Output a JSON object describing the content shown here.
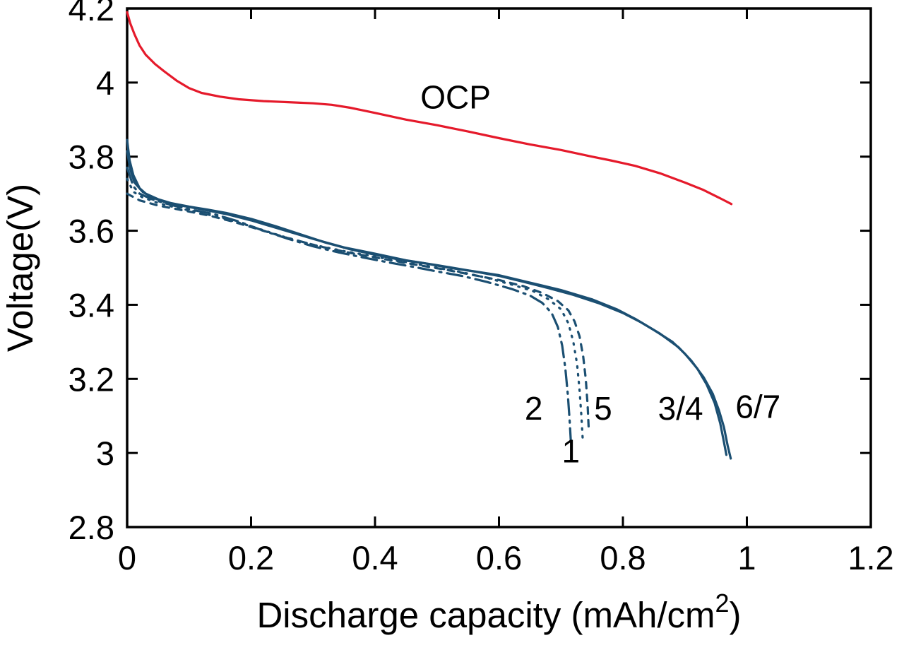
{
  "figure": {
    "background": "#ffffff",
    "axis_color": "#000000"
  },
  "chart_data": {
    "type": "line",
    "title": "",
    "xlabel": "Discharge capacity (mAh/cm²)",
    "ylabel": "Voltage(V)",
    "xlim": [
      0,
      1.2
    ],
    "ylim": [
      2.8,
      4.2
    ],
    "xticks": [
      "0",
      "0.2",
      "0.4",
      "0.6",
      "0.8",
      "1",
      "1.2"
    ],
    "yticks": [
      "2.8",
      "3",
      "3.2",
      "3.4",
      "3.6",
      "3.8",
      "4",
      "4.2"
    ],
    "grid": false,
    "legend": "none",
    "series": [
      {
        "name": "OCP",
        "color": "#e51a2b",
        "dash": "",
        "points": [
          [
            0,
            4.19
          ],
          [
            0.005,
            4.16
          ],
          [
            0.012,
            4.13
          ],
          [
            0.02,
            4.1
          ],
          [
            0.03,
            4.075
          ],
          [
            0.045,
            4.05
          ],
          [
            0.06,
            4.03
          ],
          [
            0.08,
            4.005
          ],
          [
            0.1,
            3.985
          ],
          [
            0.12,
            3.972
          ],
          [
            0.15,
            3.962
          ],
          [
            0.18,
            3.955
          ],
          [
            0.22,
            3.95
          ],
          [
            0.26,
            3.947
          ],
          [
            0.3,
            3.944
          ],
          [
            0.33,
            3.94
          ],
          [
            0.36,
            3.932
          ],
          [
            0.4,
            3.918
          ],
          [
            0.45,
            3.9
          ],
          [
            0.5,
            3.885
          ],
          [
            0.55,
            3.868
          ],
          [
            0.6,
            3.85
          ],
          [
            0.65,
            3.833
          ],
          [
            0.7,
            3.818
          ],
          [
            0.75,
            3.8
          ],
          [
            0.78,
            3.79
          ],
          [
            0.82,
            3.775
          ],
          [
            0.86,
            3.755
          ],
          [
            0.9,
            3.73
          ],
          [
            0.93,
            3.71
          ],
          [
            0.96,
            3.685
          ],
          [
            0.975,
            3.672
          ]
        ]
      },
      {
        "name": "1",
        "color": "#1b4f72",
        "dash": "2 9",
        "points": [
          [
            0,
            3.74
          ],
          [
            0.01,
            3.705
          ],
          [
            0.025,
            3.69
          ],
          [
            0.05,
            3.675
          ],
          [
            0.08,
            3.662
          ],
          [
            0.12,
            3.648
          ],
          [
            0.16,
            3.632
          ],
          [
            0.2,
            3.612
          ],
          [
            0.25,
            3.585
          ],
          [
            0.3,
            3.562
          ],
          [
            0.35,
            3.545
          ],
          [
            0.4,
            3.53
          ],
          [
            0.45,
            3.515
          ],
          [
            0.5,
            3.5
          ],
          [
            0.54,
            3.488
          ],
          [
            0.58,
            3.473
          ],
          [
            0.62,
            3.455
          ],
          [
            0.655,
            3.437
          ],
          [
            0.68,
            3.415
          ],
          [
            0.7,
            3.388
          ],
          [
            0.712,
            3.35
          ],
          [
            0.72,
            3.3
          ],
          [
            0.726,
            3.24
          ],
          [
            0.73,
            3.17
          ],
          [
            0.733,
            3.1
          ],
          [
            0.735,
            3.04
          ]
        ]
      },
      {
        "name": "2",
        "color": "#1b4f72",
        "dash": "22 8 3 8",
        "points": [
          [
            0,
            3.77
          ],
          [
            0.01,
            3.72
          ],
          [
            0.02,
            3.7
          ],
          [
            0.04,
            3.685
          ],
          [
            0.07,
            3.67
          ],
          [
            0.1,
            3.658
          ],
          [
            0.14,
            3.645
          ],
          [
            0.18,
            3.625
          ],
          [
            0.22,
            3.6
          ],
          [
            0.26,
            3.578
          ],
          [
            0.3,
            3.558
          ],
          [
            0.34,
            3.542
          ],
          [
            0.38,
            3.528
          ],
          [
            0.42,
            3.515
          ],
          [
            0.46,
            3.503
          ],
          [
            0.5,
            3.49
          ],
          [
            0.54,
            3.478
          ],
          [
            0.58,
            3.462
          ],
          [
            0.62,
            3.443
          ],
          [
            0.65,
            3.425
          ],
          [
            0.67,
            3.405
          ],
          [
            0.685,
            3.378
          ],
          [
            0.695,
            3.34
          ],
          [
            0.702,
            3.29
          ],
          [
            0.707,
            3.23
          ],
          [
            0.711,
            3.16
          ],
          [
            0.714,
            3.09
          ],
          [
            0.716,
            3.03
          ]
        ]
      },
      {
        "name": "5",
        "color": "#1b4f72",
        "dash": "9 9",
        "points": [
          [
            0,
            3.7
          ],
          [
            0.02,
            3.682
          ],
          [
            0.05,
            3.668
          ],
          [
            0.09,
            3.655
          ],
          [
            0.13,
            3.642
          ],
          [
            0.17,
            3.625
          ],
          [
            0.21,
            3.605
          ],
          [
            0.26,
            3.58
          ],
          [
            0.31,
            3.558
          ],
          [
            0.36,
            3.54
          ],
          [
            0.41,
            3.525
          ],
          [
            0.46,
            3.51
          ],
          [
            0.51,
            3.496
          ],
          [
            0.56,
            3.48
          ],
          [
            0.6,
            3.467
          ],
          [
            0.64,
            3.45
          ],
          [
            0.67,
            3.432
          ],
          [
            0.695,
            3.41
          ],
          [
            0.712,
            3.385
          ],
          [
            0.722,
            3.355
          ],
          [
            0.73,
            3.315
          ],
          [
            0.736,
            3.26
          ],
          [
            0.74,
            3.2
          ],
          [
            0.743,
            3.13
          ],
          [
            0.745,
            3.06
          ]
        ]
      },
      {
        "name": "3/4",
        "color": "#1b4f72",
        "dash": "",
        "points": [
          [
            0,
            3.815
          ],
          [
            0.005,
            3.765
          ],
          [
            0.012,
            3.73
          ],
          [
            0.025,
            3.705
          ],
          [
            0.04,
            3.69
          ],
          [
            0.06,
            3.678
          ],
          [
            0.09,
            3.667
          ],
          [
            0.12,
            3.658
          ],
          [
            0.16,
            3.645
          ],
          [
            0.2,
            3.628
          ],
          [
            0.25,
            3.603
          ],
          [
            0.3,
            3.578
          ],
          [
            0.35,
            3.555
          ],
          [
            0.4,
            3.538
          ],
          [
            0.45,
            3.52
          ],
          [
            0.5,
            3.507
          ],
          [
            0.55,
            3.493
          ],
          [
            0.6,
            3.48
          ],
          [
            0.65,
            3.46
          ],
          [
            0.7,
            3.44
          ],
          [
            0.75,
            3.415
          ],
          [
            0.79,
            3.388
          ],
          [
            0.82,
            3.362
          ],
          [
            0.85,
            3.332
          ],
          [
            0.88,
            3.3
          ],
          [
            0.9,
            3.268
          ],
          [
            0.92,
            3.228
          ],
          [
            0.935,
            3.185
          ],
          [
            0.948,
            3.135
          ],
          [
            0.957,
            3.08
          ],
          [
            0.963,
            3.03
          ],
          [
            0.967,
            2.995
          ]
        ]
      },
      {
        "name": "6/7",
        "color": "#1b4f72",
        "dash": "",
        "points": [
          [
            0,
            3.845
          ],
          [
            0.004,
            3.79
          ],
          [
            0.01,
            3.75
          ],
          [
            0.02,
            3.715
          ],
          [
            0.03,
            3.7
          ],
          [
            0.05,
            3.685
          ],
          [
            0.07,
            3.675
          ],
          [
            0.1,
            3.665
          ],
          [
            0.13,
            3.657
          ],
          [
            0.16,
            3.648
          ],
          [
            0.2,
            3.632
          ],
          [
            0.24,
            3.612
          ],
          [
            0.28,
            3.59
          ],
          [
            0.32,
            3.568
          ],
          [
            0.36,
            3.55
          ],
          [
            0.4,
            3.535
          ],
          [
            0.44,
            3.522
          ],
          [
            0.48,
            3.512
          ],
          [
            0.52,
            3.5
          ],
          [
            0.56,
            3.49
          ],
          [
            0.6,
            3.478
          ],
          [
            0.64,
            3.462
          ],
          [
            0.68,
            3.445
          ],
          [
            0.72,
            3.427
          ],
          [
            0.76,
            3.405
          ],
          [
            0.8,
            3.378
          ],
          [
            0.83,
            3.352
          ],
          [
            0.86,
            3.322
          ],
          [
            0.89,
            3.285
          ],
          [
            0.91,
            3.25
          ],
          [
            0.93,
            3.205
          ],
          [
            0.945,
            3.16
          ],
          [
            0.955,
            3.115
          ],
          [
            0.963,
            3.07
          ],
          [
            0.969,
            3.02
          ],
          [
            0.974,
            2.985
          ]
        ]
      }
    ],
    "annotations": [
      {
        "text": "OCP",
        "x": 0.53,
        "y": 3.93
      },
      {
        "text": "2",
        "x": 0.656,
        "y": 3.09
      },
      {
        "text": "5",
        "x": 0.768,
        "y": 3.09
      },
      {
        "text": "1",
        "x": 0.716,
        "y": 2.975
      },
      {
        "text": "3/4",
        "x": 0.893,
        "y": 3.09
      },
      {
        "text": "6/7",
        "x": 1.018,
        "y": 3.095
      }
    ]
  }
}
